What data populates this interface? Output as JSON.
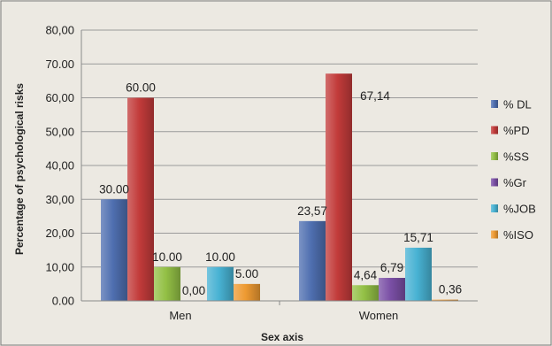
{
  "chart_data": {
    "type": "bar",
    "title": "",
    "xlabel": "Sex axis",
    "ylabel": "Percentage of psychological risks",
    "ylim": [
      0,
      80
    ],
    "y_ticks": [
      "0.00",
      "10,00",
      "20,00",
      "30,00",
      "40,00",
      "50,00",
      "60,00",
      "70.00",
      "80,00"
    ],
    "categories": [
      "Men",
      "Women"
    ],
    "grid": true,
    "legend_position": "right",
    "series": [
      {
        "name": "% DL",
        "color": "#4f6fb0",
        "values": [
          30.0,
          23.57
        ],
        "labels": [
          "30.00",
          "23,57"
        ]
      },
      {
        "name": "%PD",
        "color": "#c23b3a",
        "values": [
          60.0,
          67.14
        ],
        "labels": [
          "60.00",
          "67,14"
        ]
      },
      {
        "name": "%SS",
        "color": "#93c045",
        "values": [
          10.0,
          4.64
        ],
        "labels": [
          "10.00",
          "4,64"
        ]
      },
      {
        "name": "%Gr",
        "color": "#7a4fa5",
        "values": [
          0.0,
          6.79
        ],
        "labels": [
          "0,00",
          "6,79"
        ]
      },
      {
        "name": "%JOB",
        "color": "#48b2d3",
        "values": [
          10.0,
          15.71
        ],
        "labels": [
          "10.00",
          "15,71"
        ]
      },
      {
        "name": "%ISO",
        "color": "#ee9a32",
        "values": [
          5.0,
          0.36
        ],
        "labels": [
          "5.00",
          "0,36"
        ]
      }
    ]
  }
}
